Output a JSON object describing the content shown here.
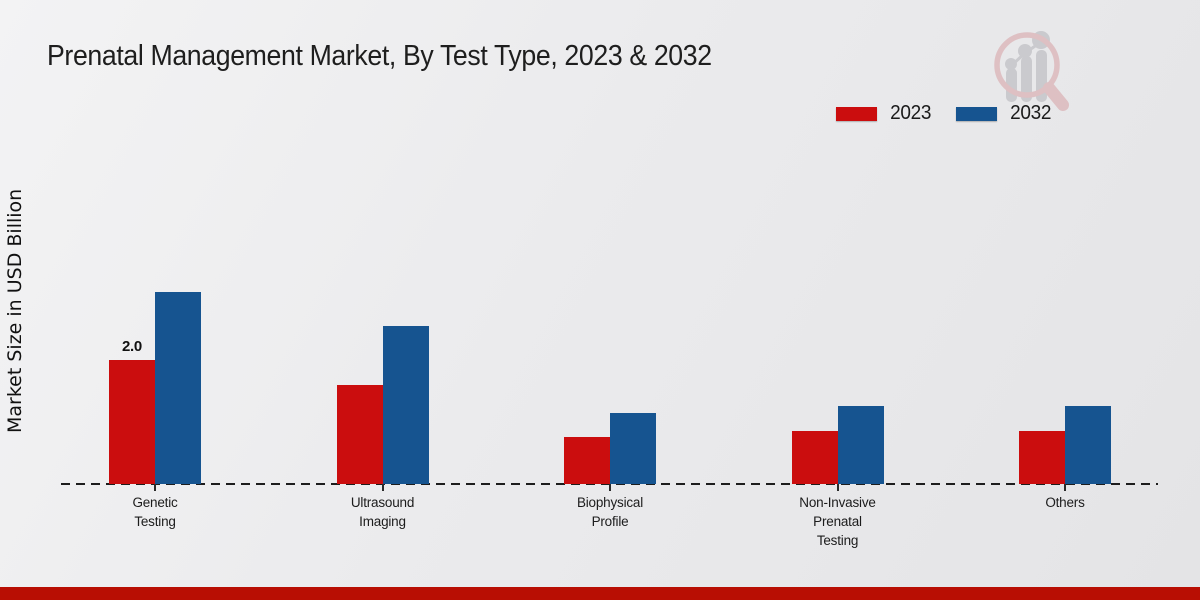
{
  "title": "Prenatal Management Market, By Test Type, 2023 & 2032",
  "y_axis_label": "Market Size in USD Billion",
  "chart_data": {
    "type": "bar",
    "title": "Prenatal Management Market, By Test Type, 2023 & 2032",
    "xlabel": "",
    "ylabel": "Market Size in USD Billion",
    "categories": [
      "Genetic Testing",
      "Ultrasound Imaging",
      "Biophysical Profile",
      "Non-Invasive Prenatal Testing",
      "Others"
    ],
    "series": [
      {
        "name": "2023",
        "color": "#cb0d0e",
        "values": [
          2.0,
          1.6,
          0.75,
          0.85,
          0.85
        ],
        "bar_labels": [
          "2.0",
          "",
          "",
          "",
          ""
        ]
      },
      {
        "name": "2032",
        "color": "#165490",
        "values": [
          3.1,
          2.55,
          1.15,
          1.25,
          1.25
        ],
        "bar_labels": [
          "",
          "",
          "",
          "",
          ""
        ]
      }
    ],
    "ylim": [
      0,
      3.5
    ],
    "grid": false,
    "y_ticks_shown": false,
    "baseline_style": "dashed",
    "legend_position": "top-right"
  },
  "watermark": {
    "icon": "magnifier-bar-chart-logo",
    "ring_color": "#ddbcbf",
    "bars_color": "#c7c7cb"
  },
  "footer": {
    "stripe_color": "#b80e03"
  }
}
